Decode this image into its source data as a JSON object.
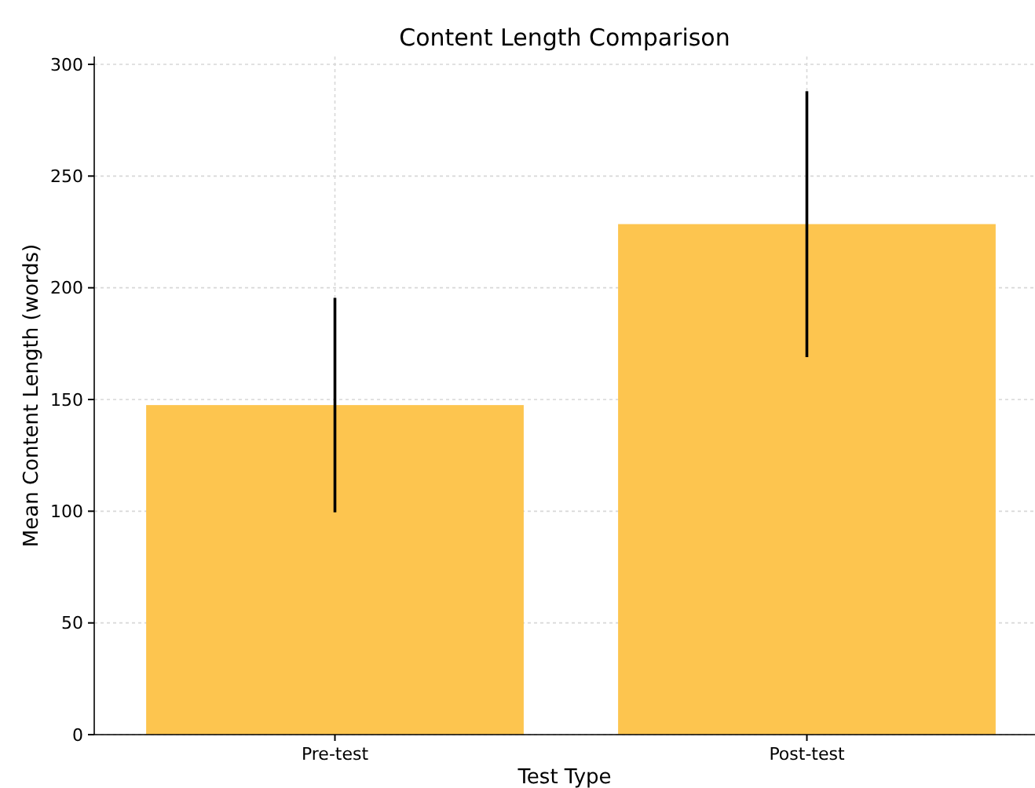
{
  "chart_data": {
    "type": "bar",
    "title": "Content Length Comparison",
    "xlabel": "Test Type",
    "ylabel": "Mean Content Length (words)",
    "categories": [
      "Pre-test",
      "Post-test"
    ],
    "values": [
      147.5,
      228.5
    ],
    "errors": [
      48,
      59.5
    ],
    "color": "#fdc54f",
    "ylim": [
      0,
      300
    ],
    "yticks": [
      0,
      50,
      100,
      150,
      200,
      250,
      300
    ],
    "grid": true
  }
}
